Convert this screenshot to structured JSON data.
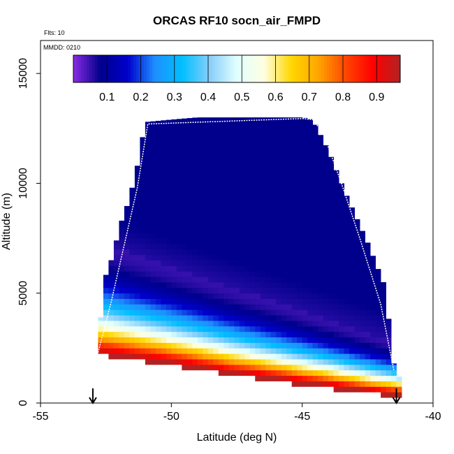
{
  "chart_data": {
    "type": "heatmap",
    "title": "ORCAS RF10 socn_air_FMPD",
    "flights_note": "Flts: 10",
    "date_note": "MMDD: 0210",
    "xlabel": "Latitude (deg N)",
    "ylabel": "Altitude (m)",
    "xlim": [
      -55,
      -40
    ],
    "ylim": [
      0,
      16500
    ],
    "x_ticks": [
      -55,
      -50,
      -45,
      -40
    ],
    "x_tick_labels": [
      "-55",
      "-50",
      "-45",
      "-40"
    ],
    "y_ticks": [
      0,
      5000,
      10000,
      15000
    ],
    "y_tick_labels": [
      "0",
      "5000",
      "10000",
      "15000"
    ],
    "colorbar": {
      "ticks": [
        0.1,
        0.2,
        0.3,
        0.4,
        0.5,
        0.6,
        0.7,
        0.8,
        0.9
      ],
      "tick_labels": [
        "0.1",
        "0.2",
        "0.3",
        "0.4",
        "0.5",
        "0.6",
        "0.7",
        "0.8",
        "0.9"
      ],
      "range": [
        0,
        0.97
      ],
      "colors": [
        "#8a2be2",
        "#00008b",
        "#0000cd",
        "#1e90ff",
        "#00bfff",
        "#87cefa",
        "#e0ffff",
        "#ffffe0",
        "#ffd700",
        "#ffa500",
        "#ff4500",
        "#ff0000",
        "#b22222"
      ]
    },
    "field": {
      "lat_bounds": [
        -52.8,
        -41.3
      ],
      "top_altitude_north": [
        [
          -52.8,
          2300
        ],
        [
          -52.6,
          5500
        ],
        [
          -52.3,
          6500
        ],
        [
          -52.1,
          7400
        ],
        [
          -51.9,
          8300
        ],
        [
          -51.6,
          9300
        ],
        [
          -51.4,
          10300
        ],
        [
          -51.2,
          11300
        ],
        [
          -51.1,
          12100
        ],
        [
          -50.9,
          12800
        ],
        [
          -50.0,
          12900
        ],
        [
          -49.0,
          13000
        ],
        [
          -45.0,
          13000
        ],
        [
          -44.6,
          12900
        ],
        [
          -44.3,
          12200
        ],
        [
          -44.0,
          11500
        ],
        [
          -43.7,
          10600
        ],
        [
          -43.4,
          9700
        ],
        [
          -43.1,
          8900
        ],
        [
          -42.8,
          8100
        ],
        [
          -42.5,
          7300
        ],
        [
          -42.2,
          6400
        ],
        [
          -41.9,
          5500
        ],
        [
          -41.6,
          3000
        ],
        [
          -41.5,
          1800
        ],
        [
          -41.3,
          1200
        ]
      ],
      "surface_altitude": [
        [
          -52.8,
          2300
        ],
        [
          -51.5,
          2100
        ],
        [
          -50.3,
          1900
        ],
        [
          -49.0,
          1650
        ],
        [
          -47.8,
          1400
        ],
        [
          -46.5,
          1200
        ],
        [
          -45.3,
          1000
        ],
        [
          -44.0,
          800
        ],
        [
          -42.8,
          600
        ],
        [
          -41.3,
          400
        ]
      ],
      "value_model": "value increases toward the surface; minimum (~0.05) near 7000 m at -52 deg shifting to ~3000 m at -42 deg; near 1 at the lowest rows"
    },
    "flight_track": [
      [
        -52.8,
        2300
      ],
      [
        -52.3,
        4600
      ],
      [
        -51.8,
        7200
      ],
      [
        -51.3,
        9800
      ],
      [
        -50.9,
        12700
      ],
      [
        -45.0,
        12950
      ],
      [
        -44.6,
        12900
      ],
      [
        -44.2,
        12300
      ],
      [
        -43.5,
        10000
      ],
      [
        -42.8,
        7500
      ],
      [
        -42.0,
        4500
      ],
      [
        -41.5,
        1500
      ]
    ],
    "arrow_latitudes": [
      -53.0,
      -41.4
    ]
  }
}
